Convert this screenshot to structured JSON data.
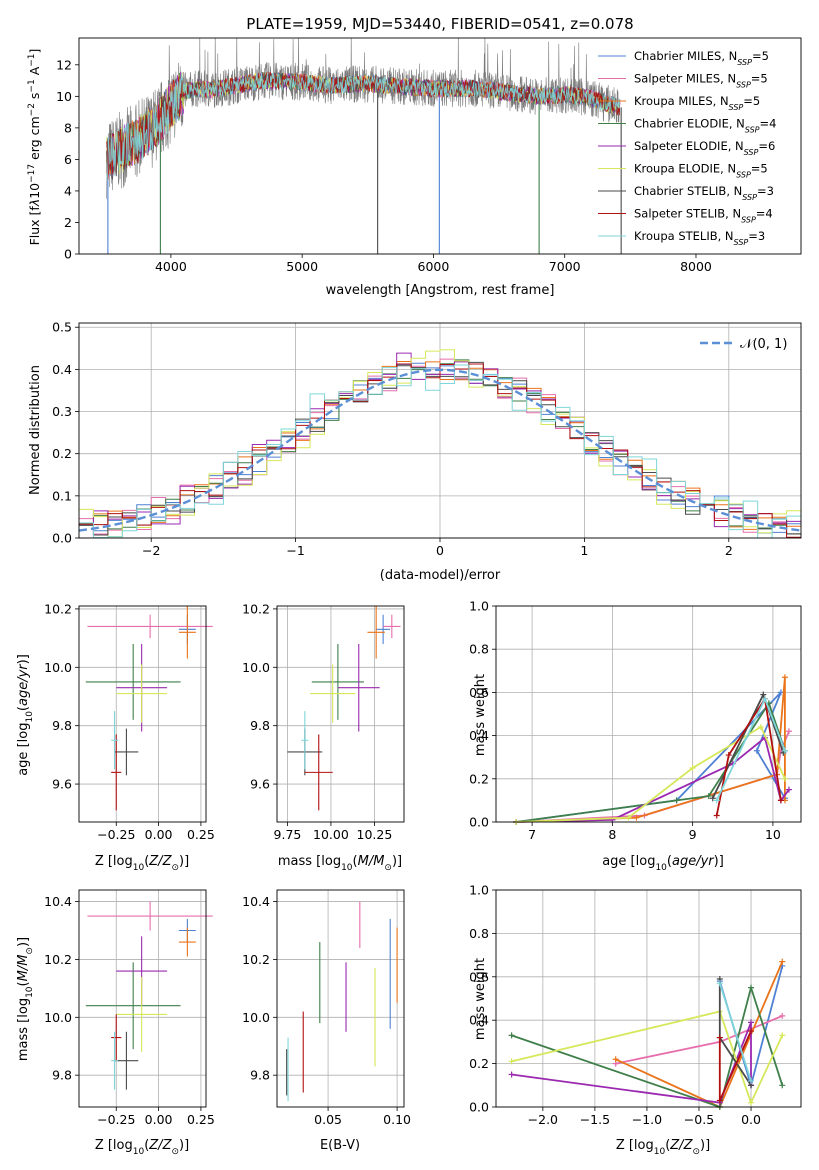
{
  "figure_title": "PLATE=1959, MJD=53440, FIBERID=0541, z=0.078",
  "series_styles": [
    {
      "name": "Chabrier MILES",
      "nssp": "5",
      "color": "#4f81d3"
    },
    {
      "name": "Salpeter MILES",
      "nssp": "5",
      "color": "#e66eac"
    },
    {
      "name": "Kroupa MILES",
      "nssp": "5",
      "color": "#e9741a"
    },
    {
      "name": "Chabrier ELODIE",
      "nssp": "4",
      "color": "#3f7f4a"
    },
    {
      "name": "Salpeter ELODIE",
      "nssp": "6",
      "color": "#9a29b0"
    },
    {
      "name": "Kroupa ELODIE",
      "nssp": "5",
      "color": "#d6e85a"
    },
    {
      "name": "Chabrier STELIB",
      "nssp": "3",
      "color": "#4a4a4a"
    },
    {
      "name": "Salpeter STELIB",
      "nssp": "4",
      "color": "#b01010"
    },
    {
      "name": "Kroupa STELIB",
      "nssp": "3",
      "color": "#7fd6da"
    }
  ],
  "chart_data": [
    {
      "type": "line",
      "id": "spectrum",
      "xlabel": "wavelength [Angstrom, rest frame]",
      "ylabel": "Flux [f_λ10^-17 erg cm^-2 s^-1 A^-1]",
      "xlim": [
        3300,
        8800
      ],
      "ylim": [
        0,
        13.7
      ],
      "xticks": [
        "4000",
        "5000",
        "6000",
        "7000",
        "8000"
      ],
      "yticks": [
        "0",
        "2",
        "4",
        "6",
        "8",
        "10",
        "12"
      ],
      "legend_position": "top-right",
      "grid": false,
      "continuum": {
        "x": [
          3510,
          3600,
          3700,
          3800,
          3900,
          4000,
          4100,
          4200,
          4300,
          4500,
          4700,
          5000,
          5200,
          5500,
          5800,
          6000,
          6300,
          6600,
          6800,
          7000,
          7100,
          7200,
          7300,
          7420
        ],
        "y": [
          6.0,
          6.5,
          7.0,
          7.5,
          8.3,
          9.4,
          10.3,
          10.5,
          10.4,
          10.7,
          11.0,
          10.9,
          10.7,
          10.8,
          10.6,
          10.5,
          10.5,
          10.2,
          10.0,
          10.1,
          10.0,
          9.9,
          9.6,
          9.3
        ]
      },
      "dropouts_x": [
        3520,
        3920,
        5575,
        6045,
        6805,
        7430
      ],
      "series_note": "9 overlapping model spectra plus observed spectrum (grey)"
    },
    {
      "type": "line",
      "id": "residuals",
      "xlabel": "(data-model)/error",
      "ylabel": "Normed distribution",
      "xlim": [
        -2.5,
        2.5
      ],
      "ylim": [
        0,
        0.51
      ],
      "xticks": [
        "−2",
        "−1",
        "0",
        "1",
        "2"
      ],
      "yticks": [
        "0.0",
        "0.1",
        "0.2",
        "0.3",
        "0.4",
        "0.5"
      ],
      "grid": true,
      "legend": [
        {
          "label": "𝒩(0, 1)",
          "style": "dashed",
          "color": "#5b8fd6"
        }
      ],
      "normal": {
        "mean": 0,
        "sigma": 1
      },
      "bin_width": 0.1,
      "step_noise": [
        0.012,
        -0.018,
        0.022,
        -0.008,
        0.015,
        -0.025,
        0.01,
        0.02,
        -0.015,
        0.005,
        0.018,
        -0.012,
        0.03,
        -0.02,
        0.008,
        -0.01,
        0.025,
        -0.015,
        0.012,
        0.02,
        -0.03,
        0.015,
        0.005,
        -0.022,
        0.02,
        0.01,
        -0.012,
        0.028,
        -0.018,
        0.006,
        0.015,
        -0.02,
        0.04,
        -0.01,
        0.012,
        0.03,
        -0.025,
        0.018,
        0.008,
        -0.014,
        0.022,
        -0.02,
        0.01,
        0.016,
        -0.012,
        0.02,
        -0.008,
        0.014,
        -0.016,
        0.01
      ]
    },
    {
      "type": "scatter",
      "id": "age-vs-Z",
      "xlabel": "Z [log10(Z/Z⊙)]",
      "ylabel": "age [log10(age/yr)]",
      "xlim": [
        -0.47,
        0.28
      ],
      "ylim": [
        9.47,
        10.21
      ],
      "xticks": [
        -0.25,
        0.0,
        0.25
      ],
      "yticks": [
        9.6,
        9.8,
        10.0,
        10.2
      ],
      "grid": true,
      "points": [
        {
          "series": 0,
          "x": 0.17,
          "xerr": 0.05,
          "y": 10.13,
          "yerr": 0.05
        },
        {
          "series": 1,
          "x": -0.05,
          "xerr": 0.37,
          "y": 10.14,
          "yerr": 0.04
        },
        {
          "series": 2,
          "x": 0.17,
          "xerr": 0.05,
          "y": 10.12,
          "yerr": 0.09
        },
        {
          "series": 3,
          "x": -0.15,
          "xerr": 0.28,
          "y": 9.95,
          "yerr": 0.13
        },
        {
          "series": 4,
          "x": -0.1,
          "xerr": 0.15,
          "y": 9.93,
          "yerr": 0.15
        },
        {
          "series": 5,
          "x": -0.1,
          "xerr": 0.15,
          "y": 9.91,
          "yerr": 0.1
        },
        {
          "series": 6,
          "x": -0.19,
          "xerr": 0.07,
          "y": 9.71,
          "yerr": 0.08
        },
        {
          "series": 7,
          "x": -0.25,
          "xerr": 0.03,
          "y": 9.64,
          "yerr": 0.13
        },
        {
          "series": 8,
          "x": -0.26,
          "xerr": 0.02,
          "y": 9.75,
          "yerr": 0.1
        }
      ]
    },
    {
      "type": "scatter",
      "id": "age-vs-mass",
      "xlabel": "mass [log10(M/M⊙)]",
      "ylabel": "",
      "xlim": [
        9.69,
        10.42
      ],
      "ylim": [
        9.47,
        10.21
      ],
      "xticks": [
        9.75,
        10.0,
        10.25
      ],
      "yticks": [
        9.6,
        9.8,
        10.0,
        10.2
      ],
      "grid": true,
      "points": [
        {
          "series": 0,
          "x": 10.3,
          "xerr": 0.04,
          "y": 10.13,
          "yerr": 0.05
        },
        {
          "series": 1,
          "x": 10.35,
          "xerr": 0.05,
          "y": 10.14,
          "yerr": 0.04
        },
        {
          "series": 2,
          "x": 10.26,
          "xerr": 0.05,
          "y": 10.12,
          "yerr": 0.09
        },
        {
          "series": 3,
          "x": 10.04,
          "xerr": 0.15,
          "y": 9.95,
          "yerr": 0.13
        },
        {
          "series": 4,
          "x": 10.16,
          "xerr": 0.12,
          "y": 9.93,
          "yerr": 0.15
        },
        {
          "series": 5,
          "x": 10.01,
          "xerr": 0.13,
          "y": 9.91,
          "yerr": 0.1
        },
        {
          "series": 6,
          "x": 9.85,
          "xerr": 0.1,
          "y": 9.71,
          "yerr": 0.08
        },
        {
          "series": 7,
          "x": 9.93,
          "xerr": 0.08,
          "y": 9.64,
          "yerr": 0.13
        },
        {
          "series": 8,
          "x": 9.85,
          "xerr": 0.02,
          "y": 9.75,
          "yerr": 0.1
        }
      ]
    },
    {
      "type": "line",
      "id": "weight-vs-age",
      "xlabel": "age [log10(age/yr)]",
      "ylabel": "mass weight",
      "xlim": [
        6.55,
        10.35
      ],
      "ylim": [
        0,
        1.0
      ],
      "xticks": [
        7,
        8,
        9,
        10
      ],
      "yticks": [
        "0.0",
        "0.2",
        "0.4",
        "0.6",
        "0.8",
        "1.0"
      ],
      "grid": true,
      "series": [
        {
          "series": 0,
          "x": [
            6.8,
            8.8,
            10.1,
            9.8,
            10.15
          ],
          "y": [
            0.0,
            0.1,
            0.6,
            0.33,
            0.11
          ]
        },
        {
          "series": 1,
          "x": [
            6.8,
            8.4,
            10.05,
            10.1,
            10.2
          ],
          "y": [
            0.0,
            0.03,
            0.22,
            0.33,
            0.42
          ]
        },
        {
          "series": 2,
          "x": [
            6.8,
            8.3,
            10.05,
            10.15,
            10.15
          ],
          "y": [
            0.0,
            0.02,
            0.22,
            0.67,
            0.1
          ]
        },
        {
          "series": 3,
          "x": [
            6.8,
            8.8,
            9.2,
            9.95,
            10.15
          ],
          "y": [
            0.0,
            0.1,
            0.12,
            0.55,
            0.33
          ]
        },
        {
          "series": 4,
          "x": [
            6.8,
            8.0,
            9.5,
            9.9,
            10.1,
            10.2
          ],
          "y": [
            0.0,
            0.01,
            0.27,
            0.39,
            0.1,
            0.15
          ]
        },
        {
          "series": 5,
          "x": [
            6.8,
            8.2,
            9.0,
            9.85,
            10.15
          ],
          "y": [
            0.0,
            0.02,
            0.25,
            0.44,
            0.2
          ]
        },
        {
          "series": 6,
          "x": [
            9.25,
            9.88,
            10.13
          ],
          "y": [
            0.11,
            0.59,
            0.32
          ]
        },
        {
          "series": 7,
          "x": [
            9.3,
            9.45,
            9.9,
            10.1
          ],
          "y": [
            0.03,
            0.31,
            0.57,
            0.1
          ]
        },
        {
          "series": 8,
          "x": [
            9.3,
            9.9,
            10.15
          ],
          "y": [
            0.1,
            0.57,
            0.33
          ]
        }
      ]
    },
    {
      "type": "scatter",
      "id": "mass-vs-Z",
      "xlabel": "Z [log10(Z/Z⊙)]",
      "ylabel": "mass [log10(M/M⊙)]",
      "xlim": [
        -0.47,
        0.28
      ],
      "ylim": [
        9.69,
        10.44
      ],
      "xticks": [
        -0.25,
        0.0,
        0.25
      ],
      "yticks": [
        9.8,
        10.0,
        10.2,
        10.4
      ],
      "grid": true,
      "points": [
        {
          "series": 0,
          "x": 0.17,
          "xerr": 0.05,
          "y": 10.3,
          "yerr": 0.04
        },
        {
          "series": 1,
          "x": -0.05,
          "xerr": 0.37,
          "y": 10.35,
          "yerr": 0.05
        },
        {
          "series": 2,
          "x": 0.17,
          "xerr": 0.05,
          "y": 10.26,
          "yerr": 0.05
        },
        {
          "series": 3,
          "x": -0.15,
          "xerr": 0.28,
          "y": 10.04,
          "yerr": 0.15
        },
        {
          "series": 4,
          "x": -0.1,
          "xerr": 0.15,
          "y": 10.16,
          "yerr": 0.12
        },
        {
          "series": 5,
          "x": -0.1,
          "xerr": 0.15,
          "y": 10.01,
          "yerr": 0.13
        },
        {
          "series": 6,
          "x": -0.19,
          "xerr": 0.07,
          "y": 9.85,
          "yerr": 0.1
        },
        {
          "series": 7,
          "x": -0.25,
          "xerr": 0.03,
          "y": 9.93,
          "yerr": 0.08
        },
        {
          "series": 8,
          "x": -0.26,
          "xerr": 0.02,
          "y": 9.85,
          "yerr": 0.1
        }
      ]
    },
    {
      "type": "scatter",
      "id": "mass-vs-ebv",
      "xlabel": "E(B-V)",
      "ylabel": "",
      "xlim": [
        0.013,
        0.105
      ],
      "ylim": [
        9.69,
        10.44
      ],
      "xticks": [
        0.05,
        0.1
      ],
      "yticks": [
        9.8,
        10.0,
        10.2,
        10.4
      ],
      "grid": true,
      "points": [
        {
          "series": 0,
          "x": 0.095,
          "xerr": 0,
          "y": 10.15,
          "yerr": 0.19
        },
        {
          "series": 1,
          "x": 0.073,
          "xerr": 0,
          "y": 10.32,
          "yerr": 0.08
        },
        {
          "series": 2,
          "x": 0.1,
          "xerr": 0,
          "y": 10.18,
          "yerr": 0.13
        },
        {
          "series": 3,
          "x": 0.044,
          "xerr": 0,
          "y": 10.12,
          "yerr": 0.14
        },
        {
          "series": 4,
          "x": 0.063,
          "xerr": 0,
          "y": 10.07,
          "yerr": 0.12
        },
        {
          "series": 5,
          "x": 0.084,
          "xerr": 0,
          "y": 10.0,
          "yerr": 0.17
        },
        {
          "series": 6,
          "x": 0.02,
          "xerr": 0,
          "y": 9.81,
          "yerr": 0.08
        },
        {
          "series": 7,
          "x": 0.032,
          "xerr": 0,
          "y": 9.88,
          "yerr": 0.14
        },
        {
          "series": 8,
          "x": 0.021,
          "xerr": 0,
          "y": 9.82,
          "yerr": 0.11
        }
      ]
    },
    {
      "type": "line",
      "id": "weight-vs-Z",
      "xlabel": "Z [log10(Z/Z⊙)]",
      "ylabel": "mass weight",
      "xlim": [
        -2.45,
        0.48
      ],
      "ylim": [
        0,
        1.0
      ],
      "xticks": [
        "−2.0",
        "−1.5",
        "−1.0",
        "−0.5",
        "0.0"
      ],
      "xtick_values": [
        -2.0,
        -1.5,
        -1.0,
        -0.5,
        0.0
      ],
      "yticks": [
        "0.0",
        "0.2",
        "0.4",
        "0.6",
        "0.8",
        "1.0"
      ],
      "grid": true,
      "series": [
        {
          "series": 0,
          "x": [
            -0.3,
            0.0,
            0.3
          ],
          "y": [
            0.58,
            0.1,
            0.65
          ]
        },
        {
          "series": 1,
          "x": [
            -1.3,
            -0.3,
            0.3
          ],
          "y": [
            0.2,
            0.3,
            0.42
          ]
        },
        {
          "series": 2,
          "x": [
            -1.3,
            -0.3,
            0.3
          ],
          "y": [
            0.22,
            0.0,
            0.67
          ]
        },
        {
          "series": 3,
          "x": [
            -2.3,
            -0.3,
            0.0,
            0.3
          ],
          "y": [
            0.33,
            0.0,
            0.55,
            0.1
          ]
        },
        {
          "series": 4,
          "x": [
            -2.3,
            -0.3,
            0.0,
            0.0
          ],
          "y": [
            0.15,
            0.02,
            0.39,
            0.1
          ]
        },
        {
          "series": 5,
          "x": [
            -2.3,
            -0.3,
            0.0,
            0.3
          ],
          "y": [
            0.21,
            0.44,
            0.02,
            0.33
          ]
        },
        {
          "series": 6,
          "x": [
            -0.3,
            -0.3,
            0.0
          ],
          "y": [
            0.59,
            0.32,
            0.1
          ]
        },
        {
          "series": 7,
          "x": [
            -0.3,
            -0.3,
            0.0
          ],
          "y": [
            0.32,
            0.03,
            0.35
          ]
        },
        {
          "series": 8,
          "x": [
            -0.3,
            0.0
          ],
          "y": [
            0.57,
            0.12
          ]
        }
      ]
    }
  ]
}
